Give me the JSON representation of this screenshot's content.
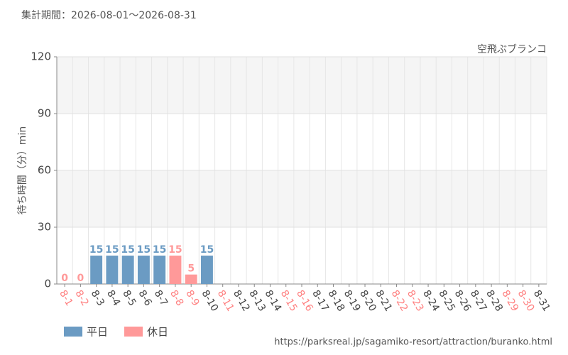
{
  "chart_data": {
    "type": "bar",
    "title": "集計期間：2026-08-01～2026-08-31",
    "subtitle": "空飛ぶブランコ",
    "y_label": "待ち時間（分）min",
    "source": "https://parksreal.jp/sagamiko-resort/attraction/buranko.html",
    "categories": [
      "8-1",
      "8-2",
      "8-3",
      "8-4",
      "8-5",
      "8-6",
      "8-7",
      "8-8",
      "8-9",
      "8-10",
      "8-11",
      "8-12",
      "8-13",
      "8-14",
      "8-15",
      "8-16",
      "8-17",
      "8-18",
      "8-19",
      "8-20",
      "8-21",
      "8-22",
      "8-23",
      "8-24",
      "8-25",
      "8-26",
      "8-27",
      "8-28",
      "8-29",
      "8-30",
      "8-31"
    ],
    "category_colors": [
      "#ff8080",
      "#ff8080",
      "#444444",
      "#444444",
      "#444444",
      "#444444",
      "#444444",
      "#ff8080",
      "#ff8080",
      "#444444",
      "#ff8080",
      "#444444",
      "#444444",
      "#444444",
      "#ff8080",
      "#ff8080",
      "#444444",
      "#444444",
      "#444444",
      "#444444",
      "#444444",
      "#ff8080",
      "#ff8080",
      "#444444",
      "#444444",
      "#444444",
      "#444444",
      "#444444",
      "#ff8080",
      "#ff8080",
      "#444444"
    ],
    "series": [
      {
        "name": "平日",
        "color": "#6b9bc3",
        "values": [
          null,
          null,
          15,
          15,
          15,
          15,
          15,
          null,
          null,
          15,
          null,
          null,
          null,
          null,
          null,
          null,
          null,
          null,
          null,
          null,
          null,
          null,
          null,
          null,
          null,
          null,
          null,
          null,
          null,
          null,
          null
        ]
      },
      {
        "name": "休日",
        "color": "#ff9999",
        "values": [
          0,
          0,
          null,
          null,
          null,
          null,
          null,
          15,
          5,
          null,
          null,
          null,
          null,
          null,
          null,
          null,
          null,
          null,
          null,
          null,
          null,
          null,
          null,
          null,
          null,
          null,
          null,
          null,
          null,
          null,
          null
        ]
      }
    ],
    "ylim": [
      0,
      120
    ],
    "yticks": [
      0,
      30,
      60,
      90,
      120
    ],
    "grid": true
  }
}
